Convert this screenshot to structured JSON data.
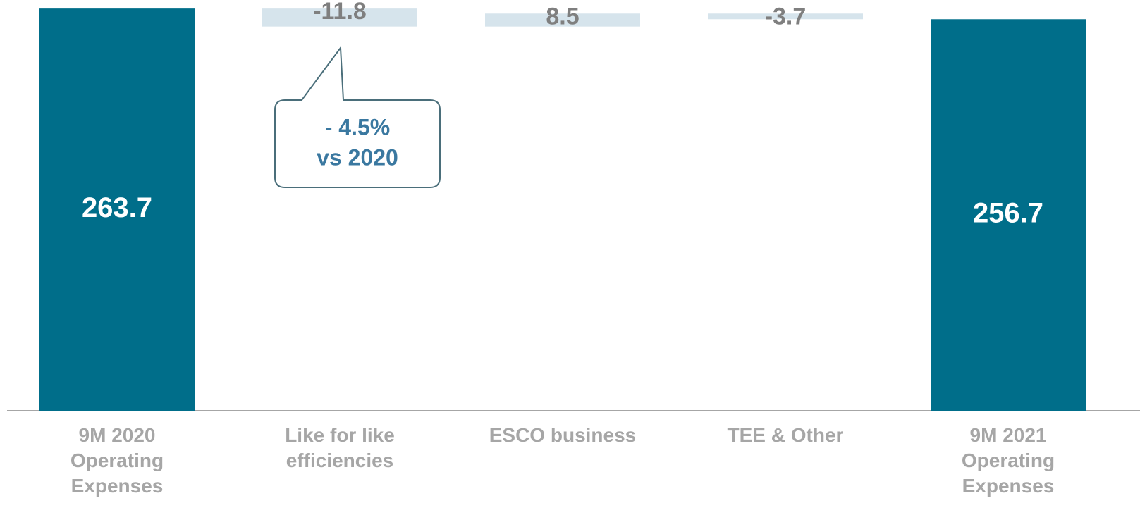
{
  "chart_data": {
    "type": "waterfall",
    "categories": [
      "9M 2020 Operating Expenses",
      "Like for like efficiencies",
      "ESCO business",
      "TEE & Other",
      "9M 2021 Operating Expenses"
    ],
    "values": [
      263.7,
      -11.8,
      8.5,
      -3.7,
      256.7
    ],
    "total_color": "#006e8a",
    "delta_color": "#d6e4ec",
    "ylim": [
      0,
      269.3
    ],
    "annotation": [
      "- 4.5%",
      "vs 2020"
    ]
  }
}
